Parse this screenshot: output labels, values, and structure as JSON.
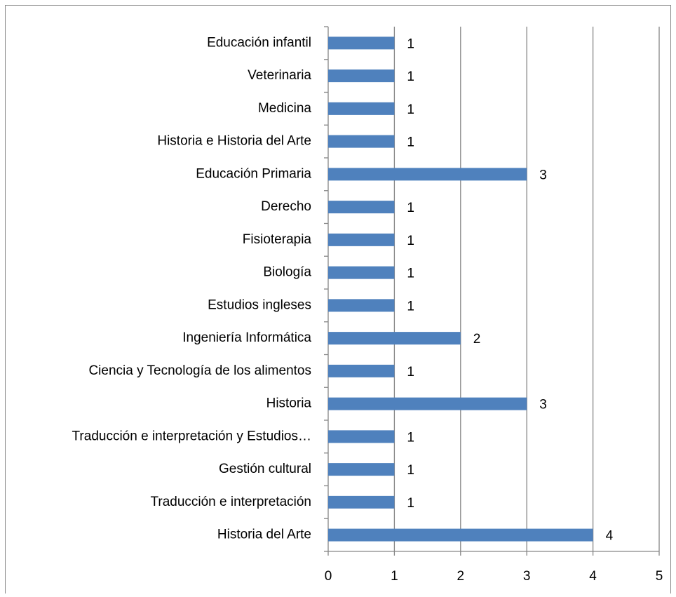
{
  "chart_data": {
    "type": "bar",
    "orientation": "horizontal",
    "categories": [
      "Educación infantil",
      "Veterinaria",
      "Medicina",
      "Historia e Historia del Arte",
      "Educación Primaria",
      "Derecho",
      "Fisioterapia",
      "Biología",
      "Estudios ingleses",
      "Ingeniería Informática",
      "Ciencia y Tecnología de los alimentos",
      "Historia",
      "Traducción e interpretación y Estudios…",
      "Gestión cultural",
      "Traducción e interpretación",
      "Historia del Arte"
    ],
    "values": [
      1,
      1,
      1,
      1,
      3,
      1,
      1,
      1,
      1,
      2,
      1,
      3,
      1,
      1,
      1,
      4
    ],
    "color": "#4f81bd",
    "xlim": [
      0,
      5
    ],
    "xticks": [
      0,
      1,
      2,
      3,
      4,
      5
    ],
    "grid": true
  }
}
